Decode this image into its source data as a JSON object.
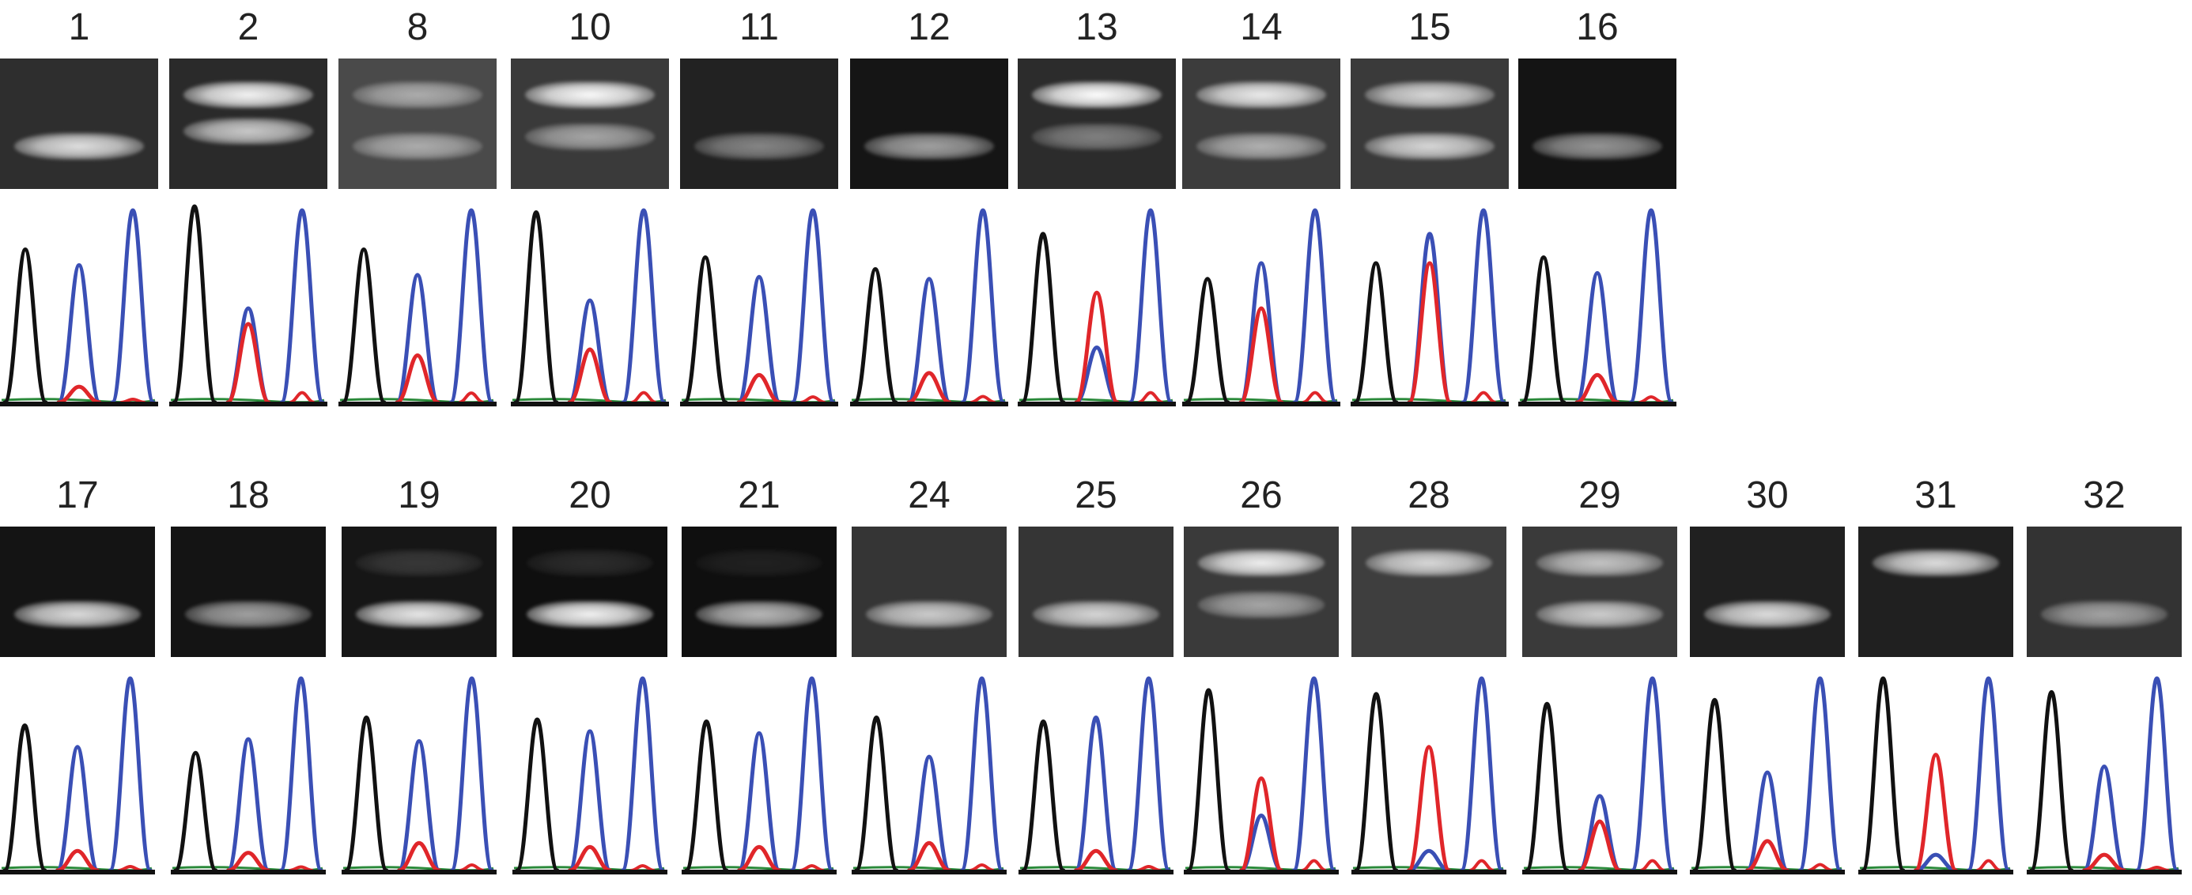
{
  "figure": {
    "rows": [
      {
        "samples": [
          {
            "label": "1",
            "gel": {
              "bg": "#2e2e2e",
              "bands": [
                {
                  "pos": "lower",
                  "intensity": 0.85
                }
              ]
            },
            "trace": {
              "black": 0.78,
              "blue_mid": 0.7,
              "red": 0.08,
              "blue_end": 0.98
            }
          },
          {
            "label": "2",
            "gel": {
              "bg": "#2a2a2a",
              "bands": [
                {
                  "pos": "upper",
                  "intensity": 0.95
                },
                {
                  "pos": "upper2",
                  "intensity": 0.75
                }
              ]
            },
            "trace": {
              "black": 1.0,
              "blue_mid": 0.48,
              "red": 0.4,
              "blue_end": 0.98
            }
          },
          {
            "label": "8",
            "gel": {
              "bg": "#4a4a4a",
              "bands": [
                {
                  "pos": "upper",
                  "intensity": 0.55
                },
                {
                  "pos": "lower",
                  "intensity": 0.55
                }
              ]
            },
            "trace": {
              "black": 0.78,
              "blue_mid": 0.65,
              "red": 0.24,
              "blue_end": 0.98
            }
          },
          {
            "label": "10",
            "gel": {
              "bg": "#3a3a3a",
              "bands": [
                {
                  "pos": "upper",
                  "intensity": 0.98
                },
                {
                  "pos": "lower2",
                  "intensity": 0.55
                }
              ]
            },
            "trace": {
              "black": 0.97,
              "blue_mid": 0.52,
              "red": 0.27,
              "blue_end": 0.98
            }
          },
          {
            "label": "11",
            "gel": {
              "bg": "#222222",
              "bands": [
                {
                  "pos": "lower",
                  "intensity": 0.45
                }
              ]
            },
            "trace": {
              "black": 0.74,
              "blue_mid": 0.64,
              "red": 0.14,
              "blue_end": 0.98
            }
          },
          {
            "label": "12",
            "gel": {
              "bg": "#151515",
              "bands": [
                {
                  "pos": "lower",
                  "intensity": 0.6
                }
              ]
            },
            "trace": {
              "black": 0.68,
              "blue_mid": 0.63,
              "red": 0.15,
              "blue_end": 0.98
            }
          },
          {
            "label": "13",
            "gel": {
              "bg": "#2c2c2c",
              "bands": [
                {
                  "pos": "upper",
                  "intensity": 1.0
                },
                {
                  "pos": "lower2",
                  "intensity": 0.4
                }
              ]
            },
            "trace": {
              "black": 0.86,
              "blue_mid": 0.28,
              "red": 0.56,
              "blue_end": 0.98
            }
          },
          {
            "label": "14",
            "gel": {
              "bg": "#3c3c3c",
              "bands": [
                {
                  "pos": "upper",
                  "intensity": 0.9
                },
                {
                  "pos": "lower",
                  "intensity": 0.6
                }
              ]
            },
            "trace": {
              "black": 0.63,
              "blue_mid": 0.71,
              "red": 0.48,
              "blue_end": 0.98
            }
          },
          {
            "label": "15",
            "gel": {
              "bg": "#3a3a3a",
              "bands": [
                {
                  "pos": "upper",
                  "intensity": 0.8
                },
                {
                  "pos": "lower",
                  "intensity": 0.8
                }
              ]
            },
            "trace": {
              "black": 0.71,
              "blue_mid": 0.86,
              "red": 0.71,
              "blue_end": 0.98
            }
          },
          {
            "label": "16",
            "gel": {
              "bg": "#141414",
              "bands": [
                {
                  "pos": "lower",
                  "intensity": 0.55
                }
              ]
            },
            "trace": {
              "black": 0.74,
              "blue_mid": 0.66,
              "red": 0.14,
              "blue_end": 0.98
            }
          }
        ]
      },
      {
        "samples": [
          {
            "label": "17",
            "gel": {
              "bg": "#141414",
              "bands": [
                {
                  "pos": "lower",
                  "intensity": 0.85
                }
              ]
            },
            "trace": {
              "black": 0.74,
              "blue_mid": 0.63,
              "red": 0.1,
              "blue_end": 0.98
            }
          },
          {
            "label": "18",
            "gel": {
              "bg": "#141414",
              "bands": [
                {
                  "pos": "lower",
                  "intensity": 0.6
                }
              ]
            },
            "trace": {
              "black": 0.6,
              "blue_mid": 0.67,
              "red": 0.09,
              "blue_end": 0.98
            }
          },
          {
            "label": "19",
            "gel": {
              "bg": "#161616",
              "bands": [
                {
                  "pos": "upper",
                  "intensity": 0.15
                },
                {
                  "pos": "lower",
                  "intensity": 0.9
                }
              ]
            },
            "trace": {
              "black": 0.78,
              "blue_mid": 0.66,
              "red": 0.14,
              "blue_end": 0.98
            }
          },
          {
            "label": "20",
            "gel": {
              "bg": "#0f0f0f",
              "bands": [
                {
                  "pos": "upper",
                  "intensity": 0.12
                },
                {
                  "pos": "lower",
                  "intensity": 0.95
                }
              ]
            },
            "trace": {
              "black": 0.77,
              "blue_mid": 0.71,
              "red": 0.12,
              "blue_end": 0.98
            }
          },
          {
            "label": "21",
            "gel": {
              "bg": "#0f0f0f",
              "bands": [
                {
                  "pos": "upper",
                  "intensity": 0.08
                },
                {
                  "pos": "lower",
                  "intensity": 0.7
                }
              ]
            },
            "trace": {
              "black": 0.76,
              "blue_mid": 0.7,
              "red": 0.12,
              "blue_end": 0.98
            }
          },
          {
            "label": "24",
            "gel": {
              "bg": "#353535",
              "bands": [
                {
                  "pos": "lower",
                  "intensity": 0.75
                }
              ]
            },
            "trace": {
              "black": 0.78,
              "blue_mid": 0.58,
              "red": 0.14,
              "blue_end": 0.98
            }
          },
          {
            "label": "25",
            "gel": {
              "bg": "#353535",
              "bands": [
                {
                  "pos": "lower",
                  "intensity": 0.8
                }
              ]
            },
            "trace": {
              "black": 0.76,
              "blue_mid": 0.78,
              "red": 0.1,
              "blue_end": 0.98
            }
          },
          {
            "label": "26",
            "gel": {
              "bg": "#3a3a3a",
              "bands": [
                {
                  "pos": "upper",
                  "intensity": 0.92
                },
                {
                  "pos": "lower2",
                  "intensity": 0.55
                }
              ]
            },
            "trace": {
              "black": 0.92,
              "blue_mid": 0.28,
              "red": 0.47,
              "blue_end": 0.98
            }
          },
          {
            "label": "28",
            "gel": {
              "bg": "#3e3e3e",
              "bands": [
                {
                  "pos": "upper",
                  "intensity": 0.8
                }
              ]
            },
            "trace": {
              "black": 0.9,
              "blue_mid": 0.1,
              "red": 0.63,
              "blue_end": 0.98
            }
          },
          {
            "label": "29",
            "gel": {
              "bg": "#3a3a3a",
              "bands": [
                {
                  "pos": "upper",
                  "intensity": 0.7
                },
                {
                  "pos": "lower",
                  "intensity": 0.75
                }
              ]
            },
            "trace": {
              "black": 0.85,
              "blue_mid": 0.38,
              "red": 0.25,
              "blue_end": 0.98
            }
          },
          {
            "label": "30",
            "gel": {
              "bg": "#202020",
              "bands": [
                {
                  "pos": "lower",
                  "intensity": 0.85
                }
              ]
            },
            "trace": {
              "black": 0.87,
              "blue_mid": 0.5,
              "red": 0.15,
              "blue_end": 0.98
            }
          },
          {
            "label": "31",
            "gel": {
              "bg": "#202020",
              "bands": [
                {
                  "pos": "upper",
                  "intensity": 0.85
                }
              ]
            },
            "trace": {
              "black": 0.98,
              "blue_mid": 0.08,
              "red": 0.59,
              "blue_end": 0.98
            }
          },
          {
            "label": "32",
            "gel": {
              "bg": "#333333",
              "bands": [
                {
                  "pos": "lower",
                  "intensity": 0.55
                }
              ]
            },
            "trace": {
              "black": 0.91,
              "blue_mid": 0.53,
              "red": 0.08,
              "blue_end": 0.98
            }
          }
        ]
      }
    ],
    "colors": {
      "black": "#111111",
      "blue": "#3a4fb5",
      "red": "#e0262a",
      "green": "#2a8a3a"
    }
  }
}
